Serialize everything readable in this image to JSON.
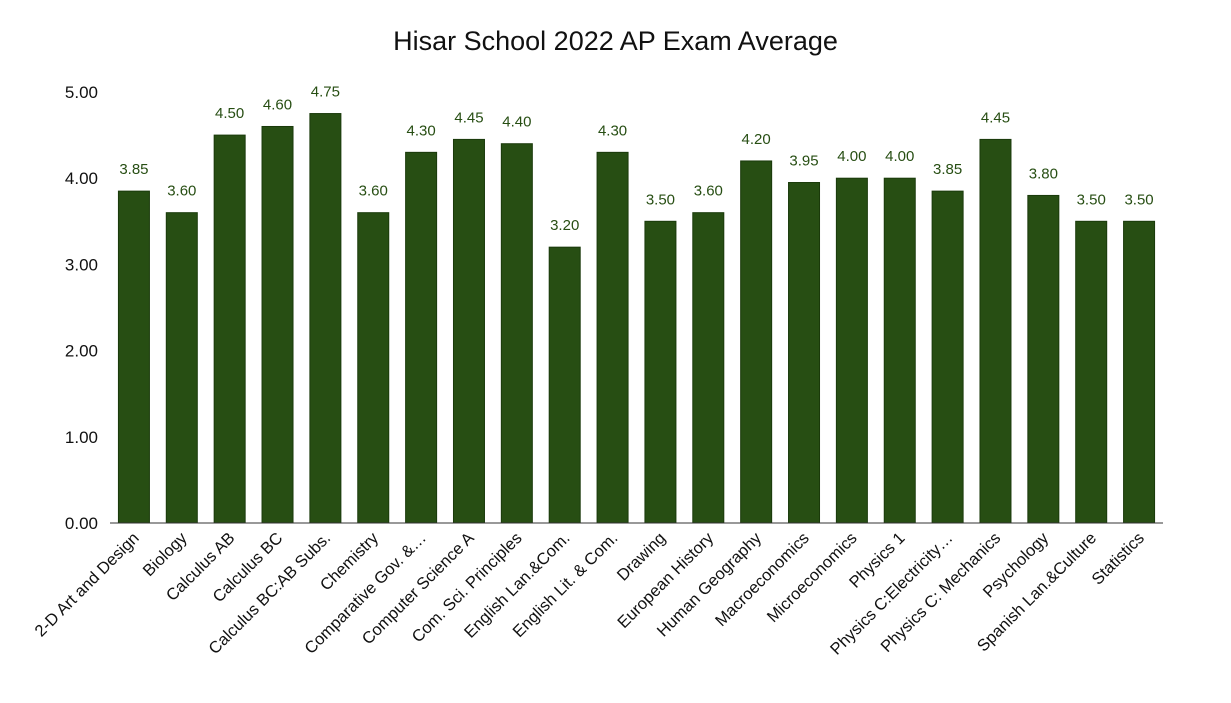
{
  "chart_data": {
    "type": "bar",
    "title": "Hisar School 2022 AP Exam Average",
    "xlabel": "",
    "ylabel": "",
    "ylim": [
      0,
      5
    ],
    "yticks": [
      "0.00",
      "1.00",
      "2.00",
      "3.00",
      "4.00",
      "5.00"
    ],
    "grid": false,
    "legend": "none",
    "bar_color": "#274e13",
    "label_color": "#274e13",
    "categories": [
      "2-D Art and Design",
      "Biology",
      "Calculus AB",
      "Calculus BC",
      "Calculus BC:AB Subs.",
      "Chemistry",
      "Comparative Gov. &…",
      "Computer Science A",
      "Com. Sci. Principles",
      "English Lan.&Com.",
      "English Lit. & Com.",
      "Drawing",
      "European History",
      "Human Geography",
      "Macroeconomics",
      "Microeconomics",
      "Physics 1",
      "Physics C:Electricity…",
      "Physics C: Mechanics",
      "Psychology",
      "Spanish Lan.&Culture",
      "Statistics"
    ],
    "values": [
      3.85,
      3.6,
      4.5,
      4.6,
      4.75,
      3.6,
      4.3,
      4.45,
      4.4,
      3.2,
      4.3,
      3.5,
      3.6,
      4.2,
      3.95,
      4.0,
      4.0,
      3.85,
      4.45,
      3.8,
      3.5,
      3.5
    ],
    "data_labels": [
      "3.85",
      "3.60",
      "4.50",
      "4.60",
      "4.75",
      "3.60",
      "4.30",
      "4.45",
      "4.40",
      "3.20",
      "4.30",
      "3.50",
      "3.60",
      "4.20",
      "3.95",
      "4.00",
      "4.00",
      "3.85",
      "4.45",
      "3.80",
      "3.50",
      "3.50"
    ]
  }
}
